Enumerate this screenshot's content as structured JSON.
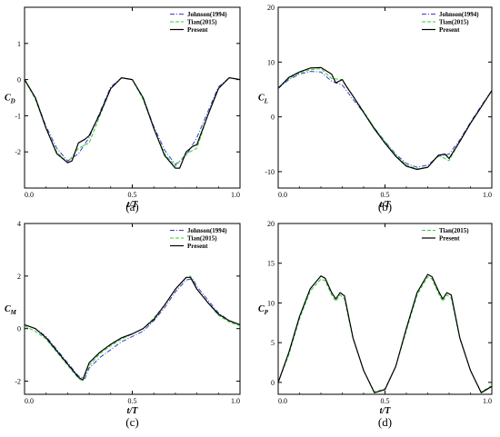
{
  "colors": {
    "johnson": "#3a3ad0",
    "tian": "#33d033",
    "present": "#000000"
  },
  "chart_data": [
    {
      "type": "line",
      "caption": "(a)",
      "xlabel": "t/T",
      "ylabel_main": "C",
      "ylabel_sub": "D",
      "xlim": [
        0,
        1
      ],
      "ylim": [
        -3,
        2
      ],
      "xticks": [
        "0.0",
        "0.5",
        "1.0"
      ],
      "xtick_values": [
        0,
        0.5,
        1
      ],
      "yticks": [
        "1",
        "0",
        "-1",
        "-2"
      ],
      "ytick_values": [
        1,
        0,
        -1,
        -2
      ],
      "legend": [
        "Johnson(1994)",
        "Tian(2015)",
        "Present"
      ],
      "series": [
        {
          "name": "Johnson(1994)",
          "style": "dashdot",
          "color": "#3a3ad0",
          "x": [
            0,
            0.05,
            0.1,
            0.15,
            0.2,
            0.25,
            0.3,
            0.35,
            0.4,
            0.45,
            0.5,
            0.55,
            0.6,
            0.65,
            0.7,
            0.75,
            0.8,
            0.85,
            0.9,
            0.95,
            1.0
          ],
          "y": [
            0.0,
            -0.5,
            -1.3,
            -1.9,
            -2.25,
            -2.05,
            -1.6,
            -0.9,
            -0.2,
            0.05,
            0.0,
            -0.5,
            -1.3,
            -1.95,
            -2.35,
            -2.1,
            -1.6,
            -0.9,
            -0.2,
            0.05,
            0.0
          ]
        },
        {
          "name": "Tian(2015)",
          "style": "dashed",
          "color": "#33d033",
          "x": [
            0,
            0.05,
            0.1,
            0.15,
            0.2,
            0.25,
            0.3,
            0.35,
            0.4,
            0.45,
            0.5,
            0.55,
            0.6,
            0.65,
            0.7,
            0.75,
            0.8,
            0.85,
            0.9,
            0.95,
            1.0
          ],
          "y": [
            0.0,
            -0.55,
            -1.35,
            -2.0,
            -2.3,
            -1.9,
            -1.75,
            -1.0,
            -0.25,
            0.05,
            0.0,
            -0.55,
            -1.35,
            -2.05,
            -2.4,
            -2.05,
            -1.9,
            -1.0,
            -0.25,
            0.05,
            0.0
          ]
        },
        {
          "name": "Present",
          "style": "solid",
          "color": "#000000",
          "x": [
            0,
            0.05,
            0.1,
            0.15,
            0.2,
            0.22,
            0.25,
            0.28,
            0.3,
            0.35,
            0.4,
            0.45,
            0.5,
            0.55,
            0.6,
            0.65,
            0.7,
            0.72,
            0.75,
            0.78,
            0.8,
            0.85,
            0.9,
            0.95,
            1.0
          ],
          "y": [
            0.0,
            -0.5,
            -1.35,
            -2.05,
            -2.3,
            -2.25,
            -1.75,
            -1.65,
            -1.55,
            -0.95,
            -0.25,
            0.05,
            0.0,
            -0.5,
            -1.35,
            -2.1,
            -2.45,
            -2.45,
            -2.0,
            -1.85,
            -1.8,
            -1.0,
            -0.25,
            0.05,
            0.0
          ]
        }
      ]
    },
    {
      "type": "line",
      "caption": "(b)",
      "xlabel": "t/T",
      "ylabel_main": "C",
      "ylabel_sub": "L",
      "xlim": [
        0,
        1
      ],
      "ylim": [
        -13,
        20
      ],
      "xticks": [
        "0.0",
        "0.5",
        "1.0"
      ],
      "xtick_values": [
        0,
        0.5,
        1
      ],
      "yticks": [
        "20",
        "10",
        "0",
        "-10"
      ],
      "ytick_values": [
        20,
        10,
        0,
        -10
      ],
      "legend": [
        "Johnson(1994)",
        "Tian(2015)",
        "Present"
      ],
      "series": [
        {
          "name": "Johnson(1994)",
          "style": "dashdot",
          "color": "#3a3ad0",
          "x": [
            0,
            0.05,
            0.1,
            0.15,
            0.2,
            0.25,
            0.3,
            0.35,
            0.4,
            0.45,
            0.5,
            0.55,
            0.6,
            0.65,
            0.7,
            0.75,
            0.8,
            0.85,
            0.9,
            0.95,
            1.0
          ],
          "y": [
            5.2,
            6.8,
            7.8,
            8.3,
            8.2,
            6.5,
            5.8,
            3.2,
            0.8,
            -2.0,
            -4.5,
            -6.8,
            -8.5,
            -9.2,
            -8.8,
            -7.2,
            -6.8,
            -4.2,
            -1.0,
            2.0,
            4.8
          ]
        },
        {
          "name": "Tian(2015)",
          "style": "dashed",
          "color": "#33d033",
          "x": [
            0,
            0.05,
            0.1,
            0.15,
            0.2,
            0.25,
            0.3,
            0.35,
            0.4,
            0.45,
            0.5,
            0.55,
            0.6,
            0.65,
            0.7,
            0.75,
            0.8,
            0.85,
            0.9,
            0.95,
            1.0
          ],
          "y": [
            5.3,
            7.0,
            8.0,
            8.6,
            8.8,
            7.0,
            6.8,
            3.8,
            1.0,
            -2.0,
            -4.6,
            -7.0,
            -8.8,
            -9.5,
            -9.2,
            -7.0,
            -8.0,
            -4.5,
            -1.2,
            1.8,
            4.8
          ]
        },
        {
          "name": "Present",
          "style": "solid",
          "color": "#000000",
          "x": [
            0,
            0.05,
            0.1,
            0.15,
            0.2,
            0.25,
            0.27,
            0.3,
            0.32,
            0.35,
            0.4,
            0.45,
            0.5,
            0.55,
            0.6,
            0.65,
            0.7,
            0.75,
            0.78,
            0.8,
            0.85,
            0.9,
            0.95,
            1.0
          ],
          "y": [
            5.2,
            7.2,
            8.2,
            8.9,
            9.0,
            7.8,
            6.2,
            6.8,
            5.5,
            3.8,
            0.8,
            -2.2,
            -4.8,
            -7.2,
            -9.0,
            -9.6,
            -9.2,
            -7.0,
            -6.8,
            -7.6,
            -4.5,
            -1.2,
            1.8,
            4.8
          ]
        }
      ]
    },
    {
      "type": "line",
      "caption": "(c)",
      "xlabel": "t/T",
      "ylabel_main": "C",
      "ylabel_sub": "M",
      "xlim": [
        0,
        1
      ],
      "ylim": [
        -2.5,
        4
      ],
      "xticks": [
        "0.0",
        "0.5",
        "1.0"
      ],
      "xtick_values": [
        0,
        0.5,
        1
      ],
      "yticks": [
        "4",
        "2",
        "0",
        "-2"
      ],
      "ytick_values": [
        4,
        2,
        0,
        -2
      ],
      "legend": [
        "Johnson(1994)",
        "Tian(2015)",
        "Present"
      ],
      "series": [
        {
          "name": "Johnson(1994)",
          "style": "dashdot",
          "color": "#3a3ad0",
          "x": [
            0,
            0.05,
            0.1,
            0.15,
            0.2,
            0.25,
            0.28,
            0.3,
            0.35,
            0.4,
            0.45,
            0.5,
            0.55,
            0.6,
            0.65,
            0.7,
            0.75,
            0.78,
            0.8,
            0.85,
            0.9,
            0.95,
            1.0
          ],
          "y": [
            0.15,
            0.0,
            -0.3,
            -0.8,
            -1.3,
            -1.8,
            -1.9,
            -1.5,
            -1.1,
            -0.8,
            -0.5,
            -0.3,
            -0.1,
            0.3,
            0.8,
            1.4,
            1.85,
            1.9,
            1.6,
            1.1,
            0.6,
            0.3,
            0.15
          ]
        },
        {
          "name": "Tian(2015)",
          "style": "dashed",
          "color": "#33d033",
          "x": [
            0,
            0.05,
            0.1,
            0.15,
            0.2,
            0.25,
            0.27,
            0.3,
            0.35,
            0.4,
            0.45,
            0.5,
            0.55,
            0.6,
            0.65,
            0.7,
            0.75,
            0.77,
            0.8,
            0.85,
            0.9,
            0.95,
            1.0
          ],
          "y": [
            0.1,
            -0.1,
            -0.4,
            -0.9,
            -1.4,
            -1.9,
            -2.0,
            -1.4,
            -0.95,
            -0.65,
            -0.4,
            -0.2,
            0.0,
            0.4,
            0.9,
            1.5,
            1.95,
            2.0,
            1.5,
            1.0,
            0.5,
            0.25,
            0.1
          ]
        },
        {
          "name": "Present",
          "style": "solid",
          "color": "#000000",
          "x": [
            0,
            0.05,
            0.1,
            0.15,
            0.2,
            0.25,
            0.27,
            0.3,
            0.35,
            0.4,
            0.45,
            0.5,
            0.55,
            0.6,
            0.65,
            0.7,
            0.75,
            0.77,
            0.8,
            0.85,
            0.9,
            0.95,
            1.0
          ],
          "y": [
            0.15,
            0.0,
            -0.35,
            -0.85,
            -1.35,
            -1.85,
            -1.95,
            -1.3,
            -0.9,
            -0.6,
            -0.35,
            -0.2,
            0.0,
            0.35,
            0.9,
            1.5,
            1.95,
            1.95,
            1.5,
            1.0,
            0.55,
            0.3,
            0.15
          ]
        }
      ]
    },
    {
      "type": "line",
      "caption": "(d)",
      "xlabel": "t/T",
      "ylabel_main": "C",
      "ylabel_sub": "P",
      "xlim": [
        0,
        1
      ],
      "ylim": [
        -1.5,
        20
      ],
      "xticks": [
        "0.0",
        "0.5",
        "1.0"
      ],
      "xtick_values": [
        0,
        0.5,
        1
      ],
      "yticks": [
        "20",
        "15",
        "10",
        "5",
        "0"
      ],
      "ytick_values": [
        20,
        15,
        10,
        5,
        0
      ],
      "legend": [
        "Tian(2015)",
        "Present"
      ],
      "series": [
        {
          "name": "Tian(2015)",
          "style": "dashed",
          "color": "#33d033",
          "x": [
            0,
            0.05,
            0.1,
            0.15,
            0.2,
            0.22,
            0.25,
            0.27,
            0.29,
            0.31,
            0.35,
            0.4,
            0.45,
            0.5,
            0.55,
            0.6,
            0.65,
            0.7,
            0.72,
            0.75,
            0.77,
            0.79,
            0.81,
            0.85,
            0.9,
            0.95,
            1.0
          ],
          "y": [
            0.0,
            3.5,
            8.0,
            11.5,
            13.0,
            12.8,
            11.0,
            10.2,
            11.0,
            10.5,
            5.5,
            1.5,
            -1.2,
            -0.8,
            2.0,
            6.5,
            11.0,
            13.3,
            13.0,
            11.2,
            10.2,
            11.0,
            10.6,
            5.5,
            1.5,
            -1.2,
            -0.4
          ]
        },
        {
          "name": "Present",
          "style": "solid",
          "color": "#000000",
          "x": [
            0,
            0.05,
            0.1,
            0.15,
            0.2,
            0.22,
            0.25,
            0.27,
            0.29,
            0.31,
            0.35,
            0.4,
            0.45,
            0.5,
            0.55,
            0.6,
            0.65,
            0.7,
            0.72,
            0.75,
            0.77,
            0.79,
            0.81,
            0.85,
            0.9,
            0.95,
            1.0
          ],
          "y": [
            0.0,
            3.8,
            8.3,
            11.8,
            13.4,
            13.1,
            11.3,
            10.5,
            11.3,
            10.9,
            5.6,
            1.5,
            -1.3,
            -0.9,
            2.0,
            6.8,
            11.3,
            13.6,
            13.3,
            11.5,
            10.5,
            11.3,
            11.0,
            5.6,
            1.5,
            -1.3,
            -0.5
          ]
        }
      ]
    }
  ]
}
